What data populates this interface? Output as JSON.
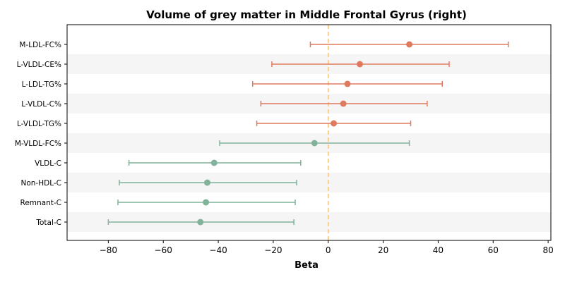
{
  "chart_data": {
    "type": "forest",
    "title": "Volume of grey matter in Middle Frontal Gyrus (right)",
    "xlabel": "Beta",
    "xlim": [
      -95,
      81
    ],
    "xticks": [
      -80,
      -60,
      -40,
      -20,
      0,
      20,
      40,
      60,
      80
    ],
    "xtick_labels": [
      "−80",
      "−60",
      "−40",
      "−20",
      "0",
      "20",
      "40",
      "60",
      "80"
    ],
    "reference_line": 0,
    "colors": {
      "positive": "#e07a5f",
      "negative": "#81b29a",
      "reference": "#f2c27a",
      "band": "#f5f5f5"
    },
    "series": [
      {
        "label": "M-LDL-FC%",
        "beta": 29.5,
        "ci_low": -6.5,
        "ci_high": 65.5,
        "color": "positive"
      },
      {
        "label": "L-VLDL-CE%",
        "beta": 11.5,
        "ci_low": -20.5,
        "ci_high": 44.0,
        "color": "positive"
      },
      {
        "label": "L-LDL-TG%",
        "beta": 7.0,
        "ci_low": -27.5,
        "ci_high": 41.5,
        "color": "positive"
      },
      {
        "label": "L-VLDL-C%",
        "beta": 5.5,
        "ci_low": -24.5,
        "ci_high": 36.0,
        "color": "positive"
      },
      {
        "label": "L-VLDL-TG%",
        "beta": 2.0,
        "ci_low": -26.0,
        "ci_high": 30.0,
        "color": "positive"
      },
      {
        "label": "M-VLDL-FC%",
        "beta": -5.0,
        "ci_low": -39.5,
        "ci_high": 29.5,
        "color": "negative"
      },
      {
        "label": "VLDL-C",
        "beta": -41.5,
        "ci_low": -72.5,
        "ci_high": -10.0,
        "color": "negative"
      },
      {
        "label": "Non-HDL-C",
        "beta": -44.0,
        "ci_low": -76.0,
        "ci_high": -11.5,
        "color": "negative"
      },
      {
        "label": "Remnant-C",
        "beta": -44.5,
        "ci_low": -76.5,
        "ci_high": -12.0,
        "color": "negative"
      },
      {
        "label": "Total-C",
        "beta": -46.5,
        "ci_low": -80.0,
        "ci_high": -12.5,
        "color": "negative"
      }
    ]
  }
}
